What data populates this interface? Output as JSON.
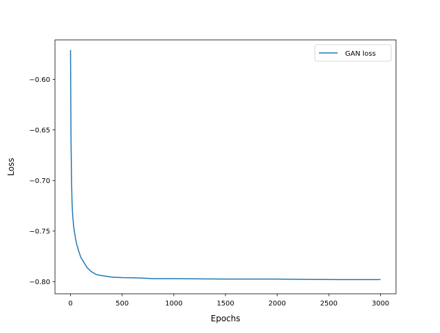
{
  "chart_data": {
    "type": "line",
    "title": "",
    "xlabel": "Epochs",
    "ylabel": "Loss",
    "xlim": [
      -150,
      3150
    ],
    "ylim": [
      -0.812,
      -0.561
    ],
    "xticks": [
      0,
      500,
      1000,
      1500,
      2000,
      2500,
      3000
    ],
    "xtick_labels": [
      "0",
      "500",
      "1000",
      "1500",
      "2000",
      "2500",
      "3000"
    ],
    "yticks": [
      -0.6,
      -0.65,
      -0.7,
      -0.75,
      -0.8
    ],
    "ytick_labels": [
      "−0.60",
      "−0.65",
      "−0.70",
      "−0.75",
      "−0.80"
    ],
    "grid": false,
    "legend_position": "upper right",
    "series": [
      {
        "name": "GAN loss",
        "color": "#1f77b4",
        "x": [
          0,
          5,
          10,
          15,
          20,
          30,
          40,
          50,
          60,
          80,
          100,
          130,
          160,
          200,
          250,
          300,
          400,
          500,
          600,
          700,
          800,
          1000,
          1200,
          1500,
          1800,
          2000,
          2300,
          2600,
          2800,
          3000
        ],
        "y": [
          -0.571,
          -0.66,
          -0.7,
          -0.722,
          -0.733,
          -0.745,
          -0.752,
          -0.758,
          -0.763,
          -0.77,
          -0.776,
          -0.781,
          -0.786,
          -0.79,
          -0.793,
          -0.794,
          -0.7955,
          -0.796,
          -0.7962,
          -0.7965,
          -0.797,
          -0.797,
          -0.7972,
          -0.7975,
          -0.7975,
          -0.7975,
          -0.7978,
          -0.798,
          -0.798,
          -0.798
        ]
      }
    ]
  }
}
